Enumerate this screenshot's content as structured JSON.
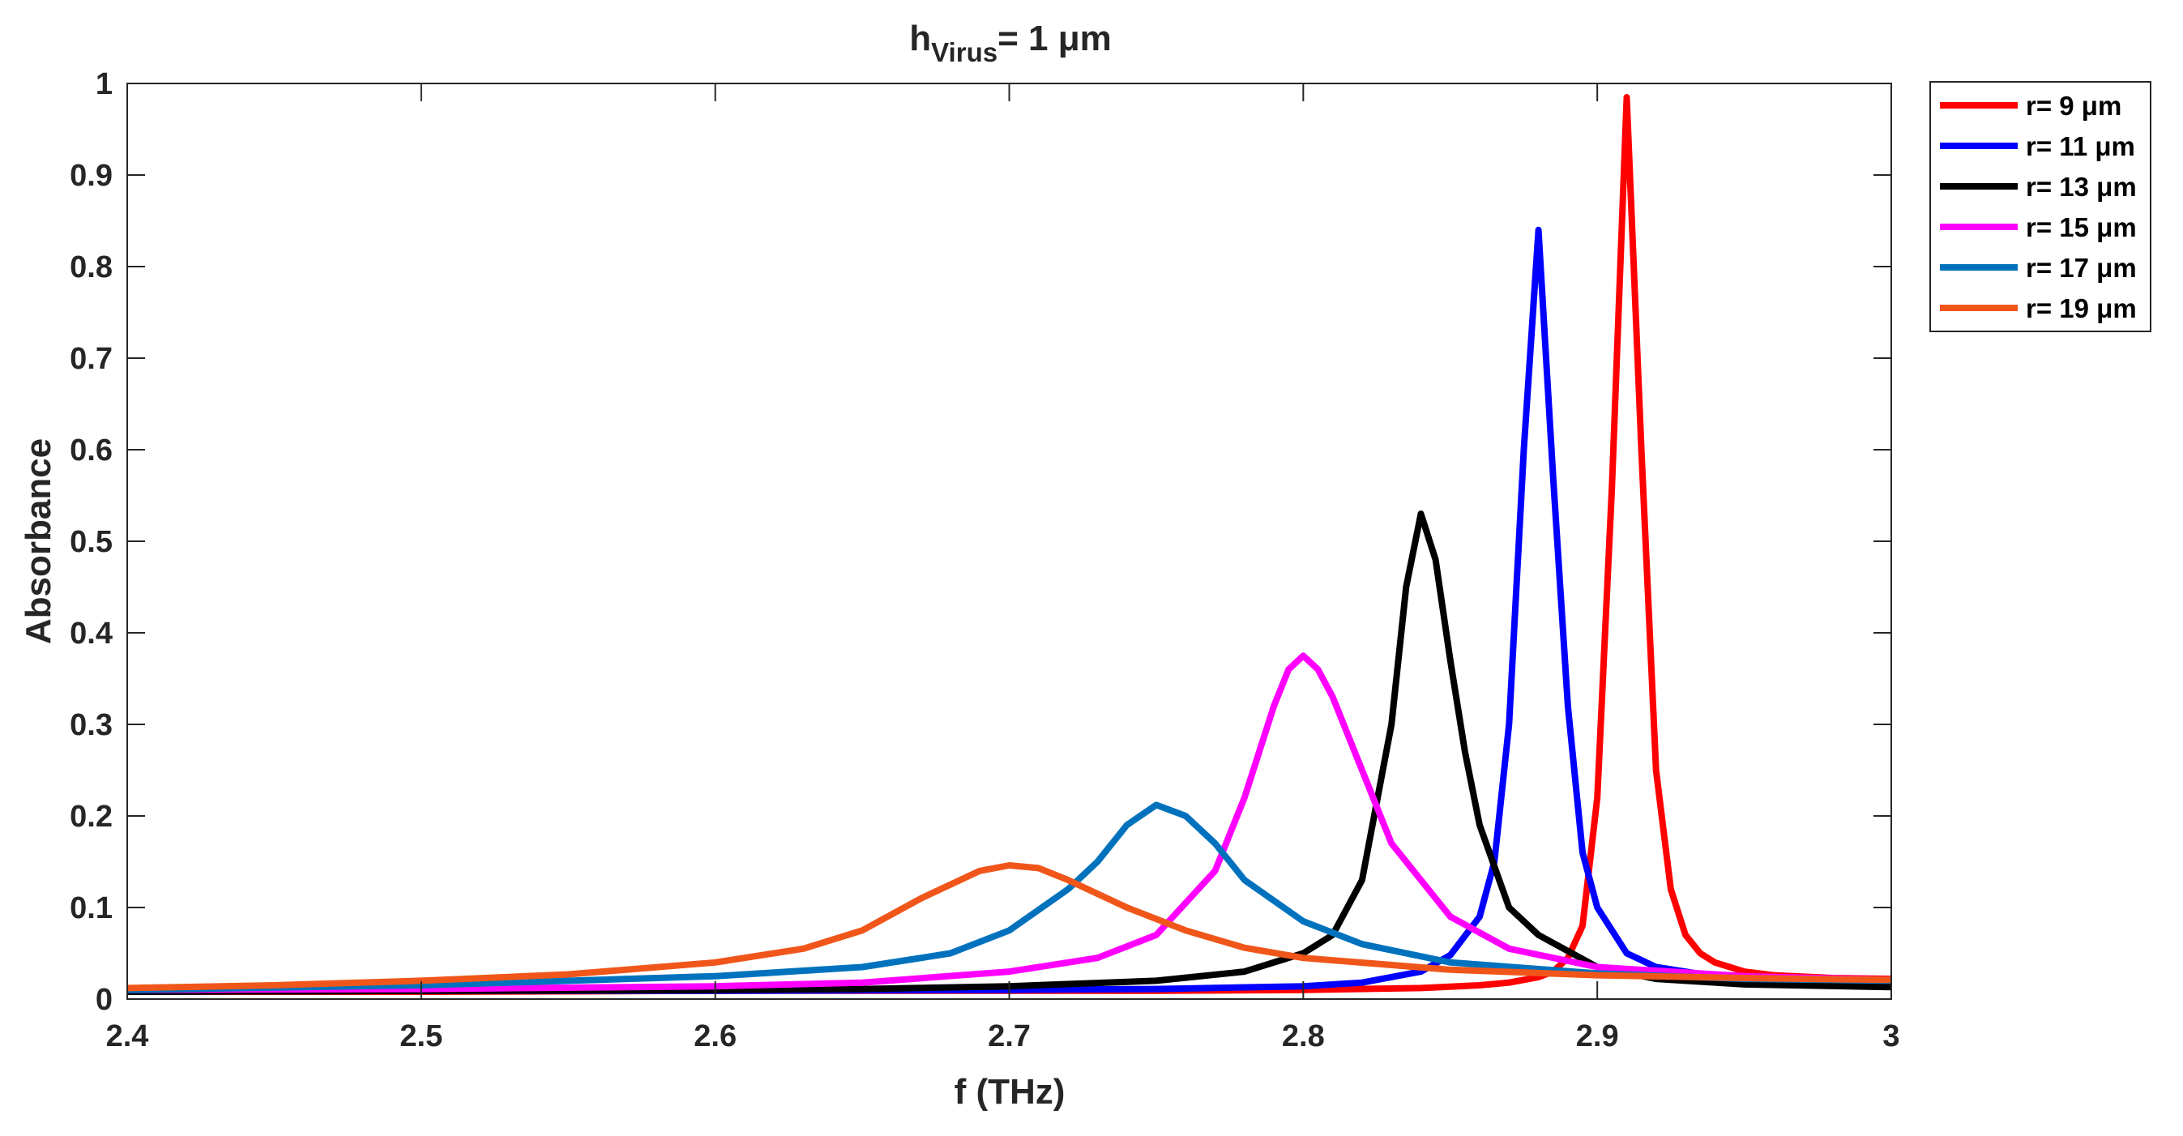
{
  "chart_data": {
    "type": "line",
    "title": {
      "prefix": "h",
      "subscript": "Virus",
      "suffix": "= 1 μm"
    },
    "xlabel": "f (THz)",
    "ylabel": "Absorbance",
    "xlim": [
      2.4,
      3.0
    ],
    "ylim": [
      0,
      1
    ],
    "xticks": [
      "2.4",
      "2.5",
      "2.6",
      "2.7",
      "2.8",
      "2.9",
      "3"
    ],
    "yticks": [
      "0",
      "0.1",
      "0.2",
      "0.3",
      "0.4",
      "0.5",
      "0.6",
      "0.7",
      "0.8",
      "0.9",
      "1"
    ],
    "grid": false,
    "legend_position": "outside-top-right",
    "series": [
      {
        "name": "r= 9 μm",
        "color": "#ff0000",
        "x": [
          2.4,
          2.5,
          2.6,
          2.7,
          2.75,
          2.8,
          2.84,
          2.86,
          2.87,
          2.88,
          2.885,
          2.89,
          2.895,
          2.9,
          2.905,
          2.91,
          2.915,
          2.92,
          2.925,
          2.93,
          2.935,
          2.94,
          2.95,
          2.96,
          2.98,
          3.0
        ],
        "y": [
          0.008,
          0.008,
          0.009,
          0.009,
          0.009,
          0.01,
          0.012,
          0.015,
          0.018,
          0.024,
          0.03,
          0.045,
          0.08,
          0.22,
          0.56,
          0.985,
          0.6,
          0.25,
          0.12,
          0.07,
          0.05,
          0.04,
          0.03,
          0.026,
          0.023,
          0.022
        ]
      },
      {
        "name": "r= 11 μm",
        "color": "#0000ff",
        "x": [
          2.4,
          2.5,
          2.6,
          2.7,
          2.75,
          2.8,
          2.82,
          2.84,
          2.85,
          2.86,
          2.865,
          2.87,
          2.875,
          2.88,
          2.885,
          2.89,
          2.895,
          2.9,
          2.91,
          2.92,
          2.94,
          2.96,
          3.0
        ],
        "y": [
          0.008,
          0.009,
          0.009,
          0.01,
          0.011,
          0.014,
          0.018,
          0.03,
          0.048,
          0.09,
          0.15,
          0.3,
          0.6,
          0.84,
          0.57,
          0.32,
          0.16,
          0.1,
          0.05,
          0.035,
          0.025,
          0.02,
          0.017
        ]
      },
      {
        "name": "r= 13 μm",
        "color": "#000000",
        "x": [
          2.4,
          2.5,
          2.6,
          2.65,
          2.7,
          2.75,
          2.78,
          2.8,
          2.81,
          2.82,
          2.83,
          2.835,
          2.84,
          2.845,
          2.85,
          2.855,
          2.86,
          2.87,
          2.88,
          2.9,
          2.92,
          2.95,
          3.0
        ],
        "y": [
          0.008,
          0.009,
          0.01,
          0.011,
          0.014,
          0.02,
          0.03,
          0.05,
          0.07,
          0.13,
          0.3,
          0.45,
          0.53,
          0.48,
          0.37,
          0.27,
          0.19,
          0.1,
          0.07,
          0.035,
          0.022,
          0.016,
          0.013
        ]
      },
      {
        "name": "r= 15 μm",
        "color": "#ff00ff",
        "x": [
          2.4,
          2.5,
          2.6,
          2.65,
          2.7,
          2.73,
          2.75,
          2.77,
          2.78,
          2.79,
          2.795,
          2.8,
          2.805,
          2.81,
          2.82,
          2.83,
          2.85,
          2.87,
          2.9,
          2.95,
          3.0
        ],
        "y": [
          0.01,
          0.011,
          0.014,
          0.018,
          0.03,
          0.045,
          0.07,
          0.14,
          0.22,
          0.32,
          0.36,
          0.375,
          0.36,
          0.33,
          0.25,
          0.17,
          0.09,
          0.055,
          0.035,
          0.025,
          0.021
        ]
      },
      {
        "name": "r= 17 μm",
        "color": "#0072bd",
        "x": [
          2.4,
          2.5,
          2.6,
          2.65,
          2.68,
          2.7,
          2.72,
          2.73,
          2.74,
          2.75,
          2.76,
          2.77,
          2.78,
          2.8,
          2.82,
          2.85,
          2.9,
          2.95,
          3.0
        ],
        "y": [
          0.01,
          0.015,
          0.025,
          0.035,
          0.05,
          0.075,
          0.12,
          0.15,
          0.19,
          0.212,
          0.2,
          0.17,
          0.13,
          0.085,
          0.06,
          0.04,
          0.028,
          0.022,
          0.02
        ]
      },
      {
        "name": "r= 19 μm",
        "color": "#f0561a",
        "x": [
          2.4,
          2.45,
          2.5,
          2.55,
          2.6,
          2.63,
          2.65,
          2.67,
          2.69,
          2.7,
          2.71,
          2.72,
          2.74,
          2.76,
          2.78,
          2.8,
          2.85,
          2.9,
          2.95,
          3.0
        ],
        "y": [
          0.012,
          0.015,
          0.02,
          0.027,
          0.04,
          0.055,
          0.075,
          0.11,
          0.14,
          0.146,
          0.143,
          0.13,
          0.1,
          0.075,
          0.056,
          0.045,
          0.032,
          0.026,
          0.023,
          0.021
        ]
      }
    ]
  }
}
